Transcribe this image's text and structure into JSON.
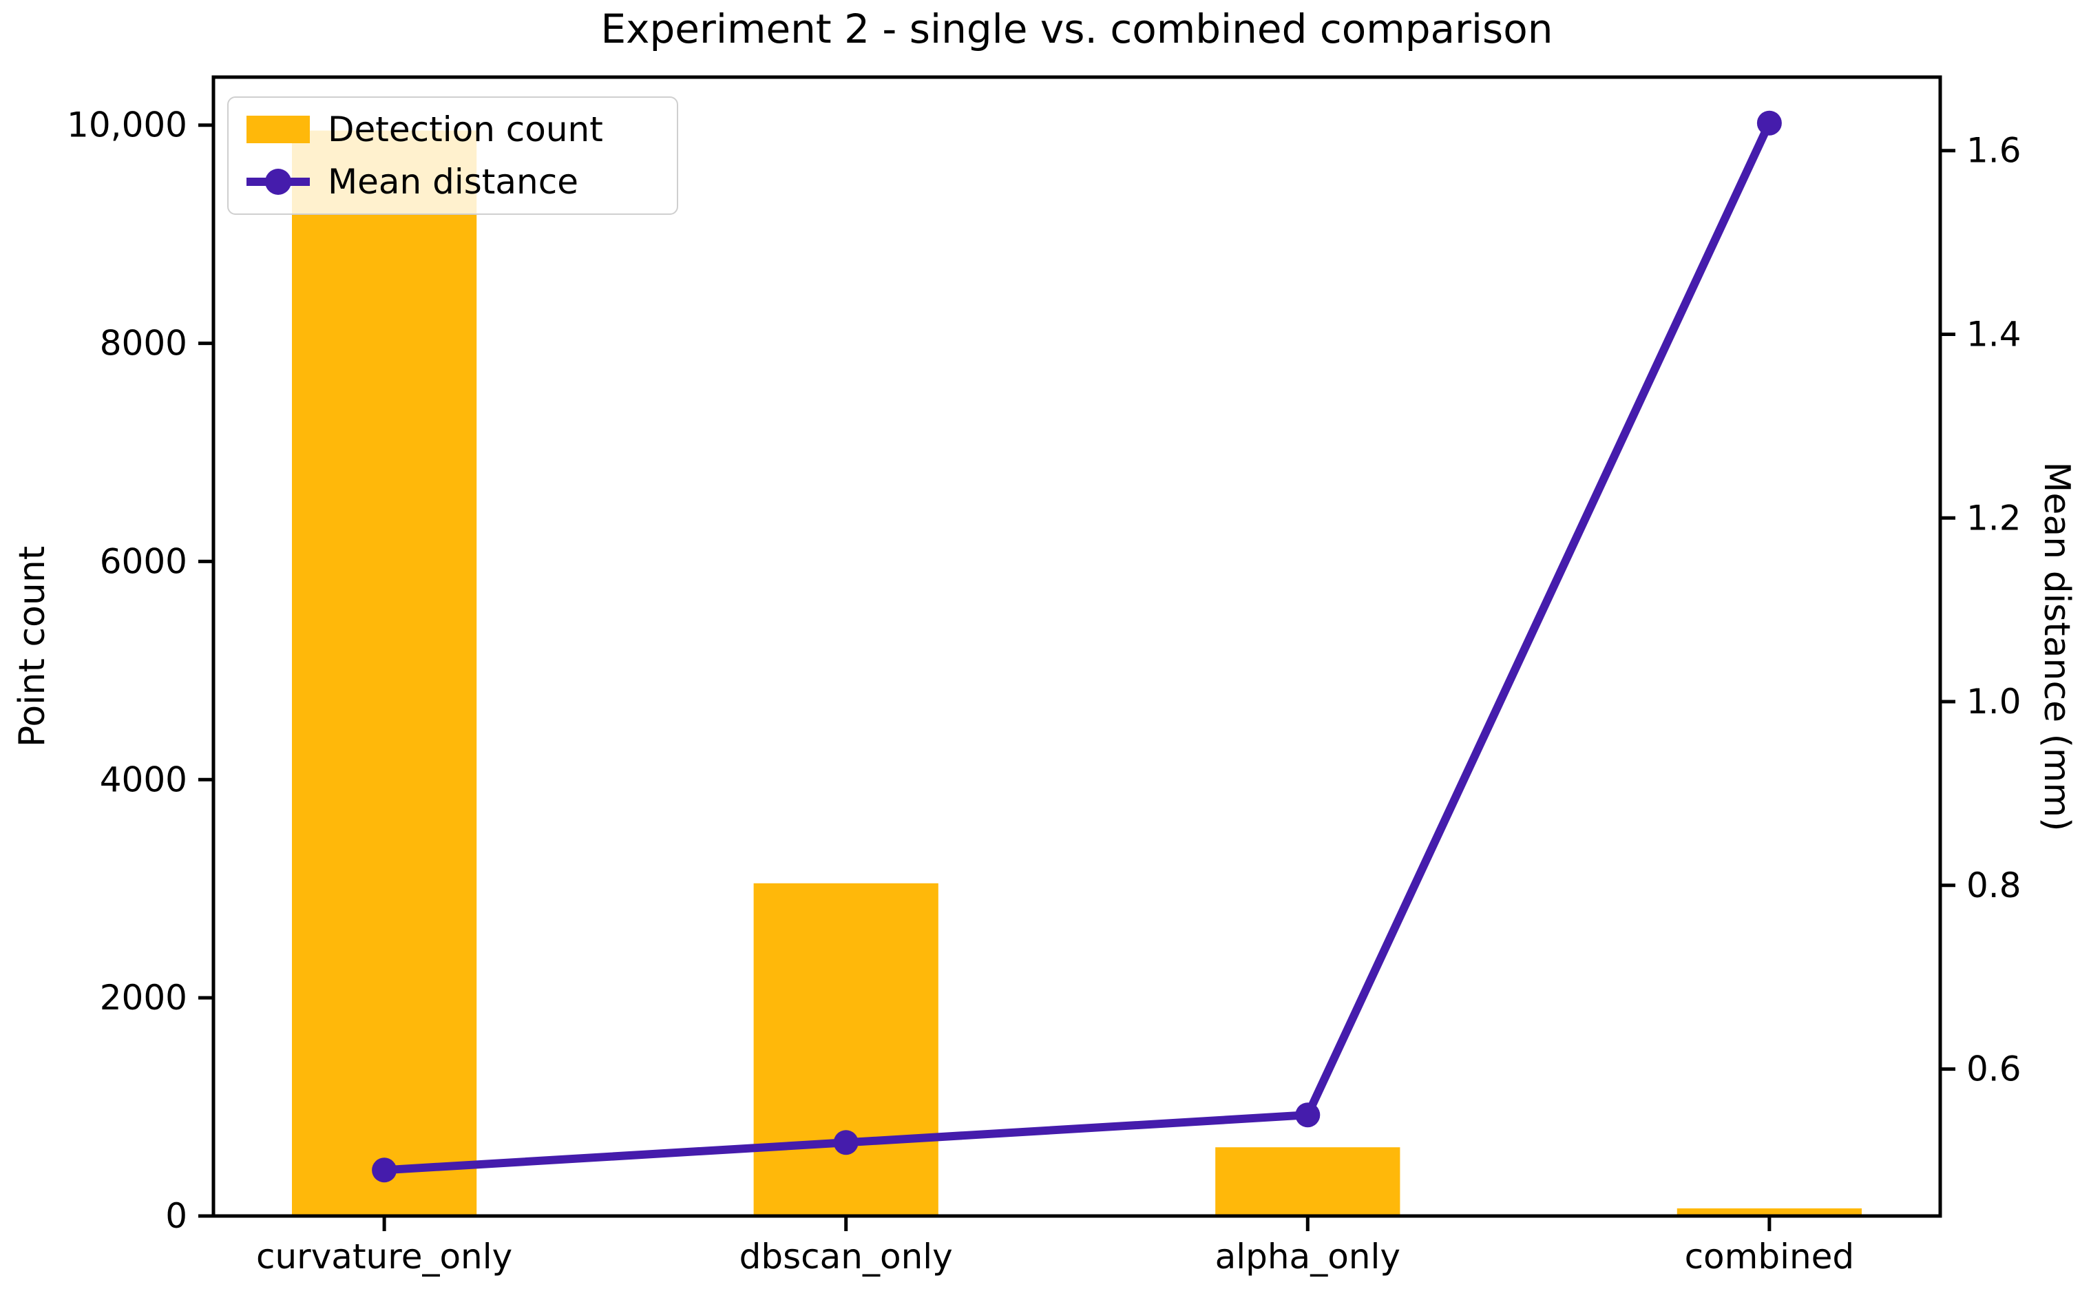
{
  "chart_data": {
    "type": "bar",
    "title": "Experiment 2 - single vs. combined comparison",
    "categories": [
      "curvature_only",
      "dbscan_only",
      "alpha_only",
      "combined"
    ],
    "series": [
      {
        "name": "Detection count",
        "type": "bar",
        "axis": "left",
        "color": "#FFB80A",
        "values": [
          9950,
          3050,
          630,
          70
        ]
      },
      {
        "name": "Mean distance",
        "type": "line",
        "axis": "right",
        "color": "#451CAC",
        "values": [
          0.49,
          0.52,
          0.55,
          1.63
        ]
      }
    ],
    "xlabel": "",
    "ylabel_left": "Point count",
    "ylabel_right": "Mean distance (mm)",
    "ylim_left": [
      0,
      10440
    ],
    "ylim_right": [
      0.44,
      1.68
    ],
    "yticks_left": {
      "values": [
        0,
        2000,
        4000,
        6000,
        8000,
        10000
      ],
      "labels": [
        "0",
        "2000",
        "4000",
        "6000",
        "8000",
        "10,000"
      ]
    },
    "yticks_right": {
      "values": [
        0.6,
        0.8,
        1.0,
        1.2,
        1.4,
        1.6
      ],
      "labels": [
        "0.6",
        "0.8",
        "1.0",
        "1.2",
        "1.4",
        "1.6"
      ]
    },
    "grid": false,
    "legend_position": "upper left"
  }
}
